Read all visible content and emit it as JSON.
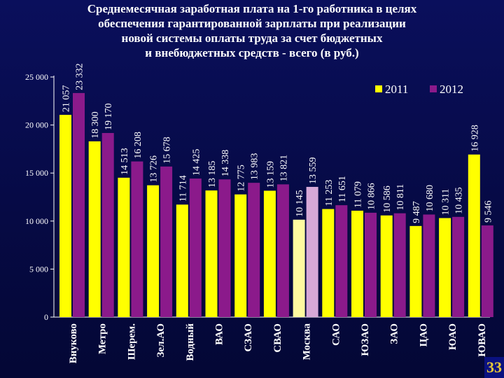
{
  "title_lines": [
    "Среднемесячная заработная плата на 1-го работника в целях",
    "обеспечения гарантированной зарплаты при реализации",
    "новой системы оплаты труда за счет бюджетных",
    "и внебюджетных средств - всего (в руб.)"
  ],
  "page_number": "33",
  "colors": {
    "series_2011": "#ffff00",
    "series_2012": "#8b1a8b",
    "moscow_2011": "#fffaa0",
    "moscow_2012": "#d7a8d7",
    "text": "#ffffff"
  },
  "chart_data": {
    "type": "bar",
    "title": "Среднемесячная заработная плата на 1-го работника в целях обеспечения гарантированной зарплаты при реализации новой системы оплаты труда за счет бюджетных и внебюджетных средств - всего (в руб.)",
    "categories": [
      "Внуково",
      "Метро",
      "Шерем.",
      "Зел.АО",
      "Водный",
      "ВАО",
      "СЗАО",
      "СВАО",
      "Москва",
      "САО",
      "ЮЗАО",
      "ЗАО",
      "ЦАО",
      "ЮАО",
      "ЮВАО"
    ],
    "series": [
      {
        "name": "2011",
        "values": [
          21057,
          18300,
          14513,
          13726,
          11714,
          13185,
          12775,
          13159,
          10145,
          11253,
          11079,
          10586,
          9487,
          10311,
          16928
        ],
        "labels": [
          "21 057",
          "18 300",
          "14 513",
          "13 726",
          "11 714",
          "13 185",
          "12 775",
          "13 159",
          "10 145",
          "11 253",
          "11 079",
          "10 586",
          "9 487",
          "10 311",
          "16 928"
        ]
      },
      {
        "name": "2012",
        "values": [
          23332,
          19170,
          16208,
          15678,
          14425,
          14338,
          13983,
          13821,
          13559,
          11651,
          10866,
          10811,
          10680,
          10435,
          9546
        ],
        "labels": [
          "23 332",
          "19 170",
          "16 208",
          "15 678",
          "14 425",
          "14 338",
          "13 983",
          "13 821",
          "13 559",
          "11 651",
          "10 866",
          "10 811",
          "10 680",
          "10 435",
          "9 546"
        ]
      }
    ],
    "y_ticks": [
      0,
      5000,
      10000,
      15000,
      20000,
      25000
    ],
    "y_tick_labels": [
      "0",
      "5 000",
      "10 000",
      "15 000",
      "20 000",
      "25 000"
    ],
    "ylim": [
      0,
      25000
    ],
    "grid": false,
    "legend_position": "top-right",
    "highlight_category": "Москва"
  }
}
